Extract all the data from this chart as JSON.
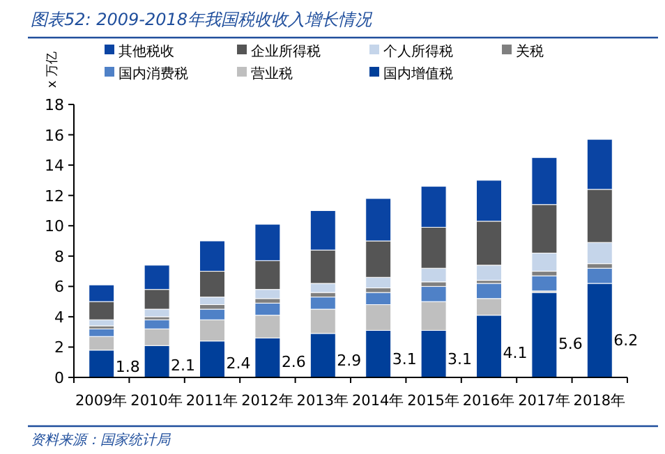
{
  "chart_data": {
    "type": "bar",
    "stacked": true,
    "title": "图表52:  2009-2018年我国税收收入增长情况",
    "ylabel": "x 万亿",
    "categories": [
      "2009年",
      "2010年",
      "2011年",
      "2012年",
      "2013年",
      "2014年",
      "2015年",
      "2016年",
      "2017年",
      "2018年"
    ],
    "series": [
      {
        "name": "国内增值税",
        "color": "#003f9a",
        "values": [
          1.8,
          2.1,
          2.4,
          2.6,
          2.9,
          3.1,
          3.1,
          4.1,
          5.6,
          6.2
        ],
        "value_labels": [
          "1.8",
          "2.1",
          "2.4",
          "2.6",
          "2.9",
          "3.1",
          "3.1",
          "4.1",
          "5.6",
          "6.2"
        ]
      },
      {
        "name": "营业税",
        "color": "#bfbfbf",
        "values": [
          0.9,
          1.1,
          1.4,
          1.5,
          1.6,
          1.7,
          1.9,
          1.1,
          0.1,
          0
        ]
      },
      {
        "name": "国内消费税",
        "color": "#4f81c7",
        "values": [
          0.5,
          0.6,
          0.7,
          0.8,
          0.8,
          0.8,
          1.0,
          1.0,
          1.0,
          1.0
        ]
      },
      {
        "name": "关税",
        "color": "#7f7f7f",
        "values": [
          0.2,
          0.2,
          0.3,
          0.3,
          0.3,
          0.3,
          0.3,
          0.2,
          0.3,
          0.3
        ]
      },
      {
        "name": "个人所得税",
        "color": "#c5d5ea",
        "values": [
          0.4,
          0.5,
          0.5,
          0.6,
          0.6,
          0.7,
          0.9,
          1.0,
          1.2,
          1.4
        ]
      },
      {
        "name": "企业所得税",
        "color": "#555555",
        "values": [
          1.2,
          1.3,
          1.7,
          1.9,
          2.2,
          2.4,
          2.7,
          2.9,
          3.2,
          3.5
        ]
      },
      {
        "name": "其他税收",
        "color": "#0a44a3",
        "values": [
          1.1,
          1.6,
          2.0,
          2.4,
          2.6,
          2.8,
          2.7,
          2.7,
          3.1,
          3.3
        ]
      }
    ],
    "ylim": [
      0,
      18
    ],
    "yticks": [
      0,
      2,
      4,
      6,
      8,
      10,
      12,
      14,
      16,
      18
    ],
    "legend": "top",
    "grid": false,
    "annotations": [
      "资料来源：国家统计局"
    ]
  }
}
